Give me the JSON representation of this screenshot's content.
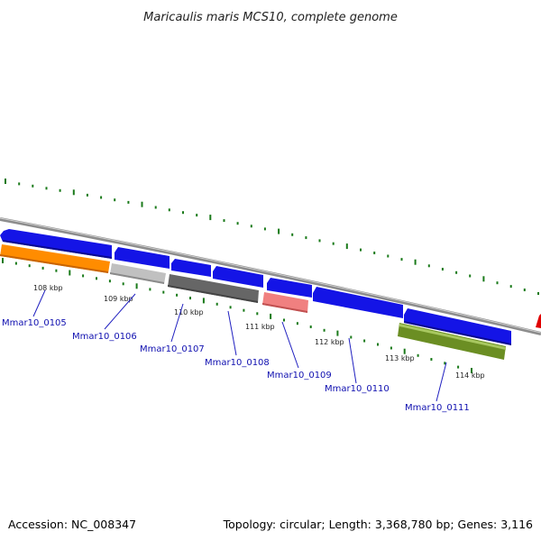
{
  "title": "Maricaulis maris MCS10, complete genome",
  "footer": {
    "accession": "Accession: NC_008347",
    "summary": "Topology: circular; Length: 3,368,780 bp; Genes: 3,116"
  },
  "ticks": [
    {
      "label": "108 kbp"
    },
    {
      "label": "109 kbp"
    },
    {
      "label": "110 kbp"
    },
    {
      "label": "111 kbp"
    },
    {
      "label": "112 kbp"
    },
    {
      "label": "113 kbp"
    },
    {
      "label": "114 kbp"
    }
  ],
  "genes": [
    {
      "label": "Mmar10_0105"
    },
    {
      "label": "Mmar10_0106"
    },
    {
      "label": "Mmar10_0107"
    },
    {
      "label": "Mmar10_0108"
    },
    {
      "label": "Mmar10_0109"
    },
    {
      "label": "Mmar10_0110"
    },
    {
      "label": "Mmar10_0111"
    }
  ],
  "colors": {
    "backbone": "#8c8c8c",
    "cds_forward": "#1414e6",
    "tick": "#1a7a1a",
    "orange": "#ff8c00",
    "light_gray": "#c0c0c0",
    "dark_gray": "#666666",
    "pink": "#f08080",
    "olive": "#6b8e23",
    "red": "#e00000",
    "label_line": "#2020c0"
  }
}
